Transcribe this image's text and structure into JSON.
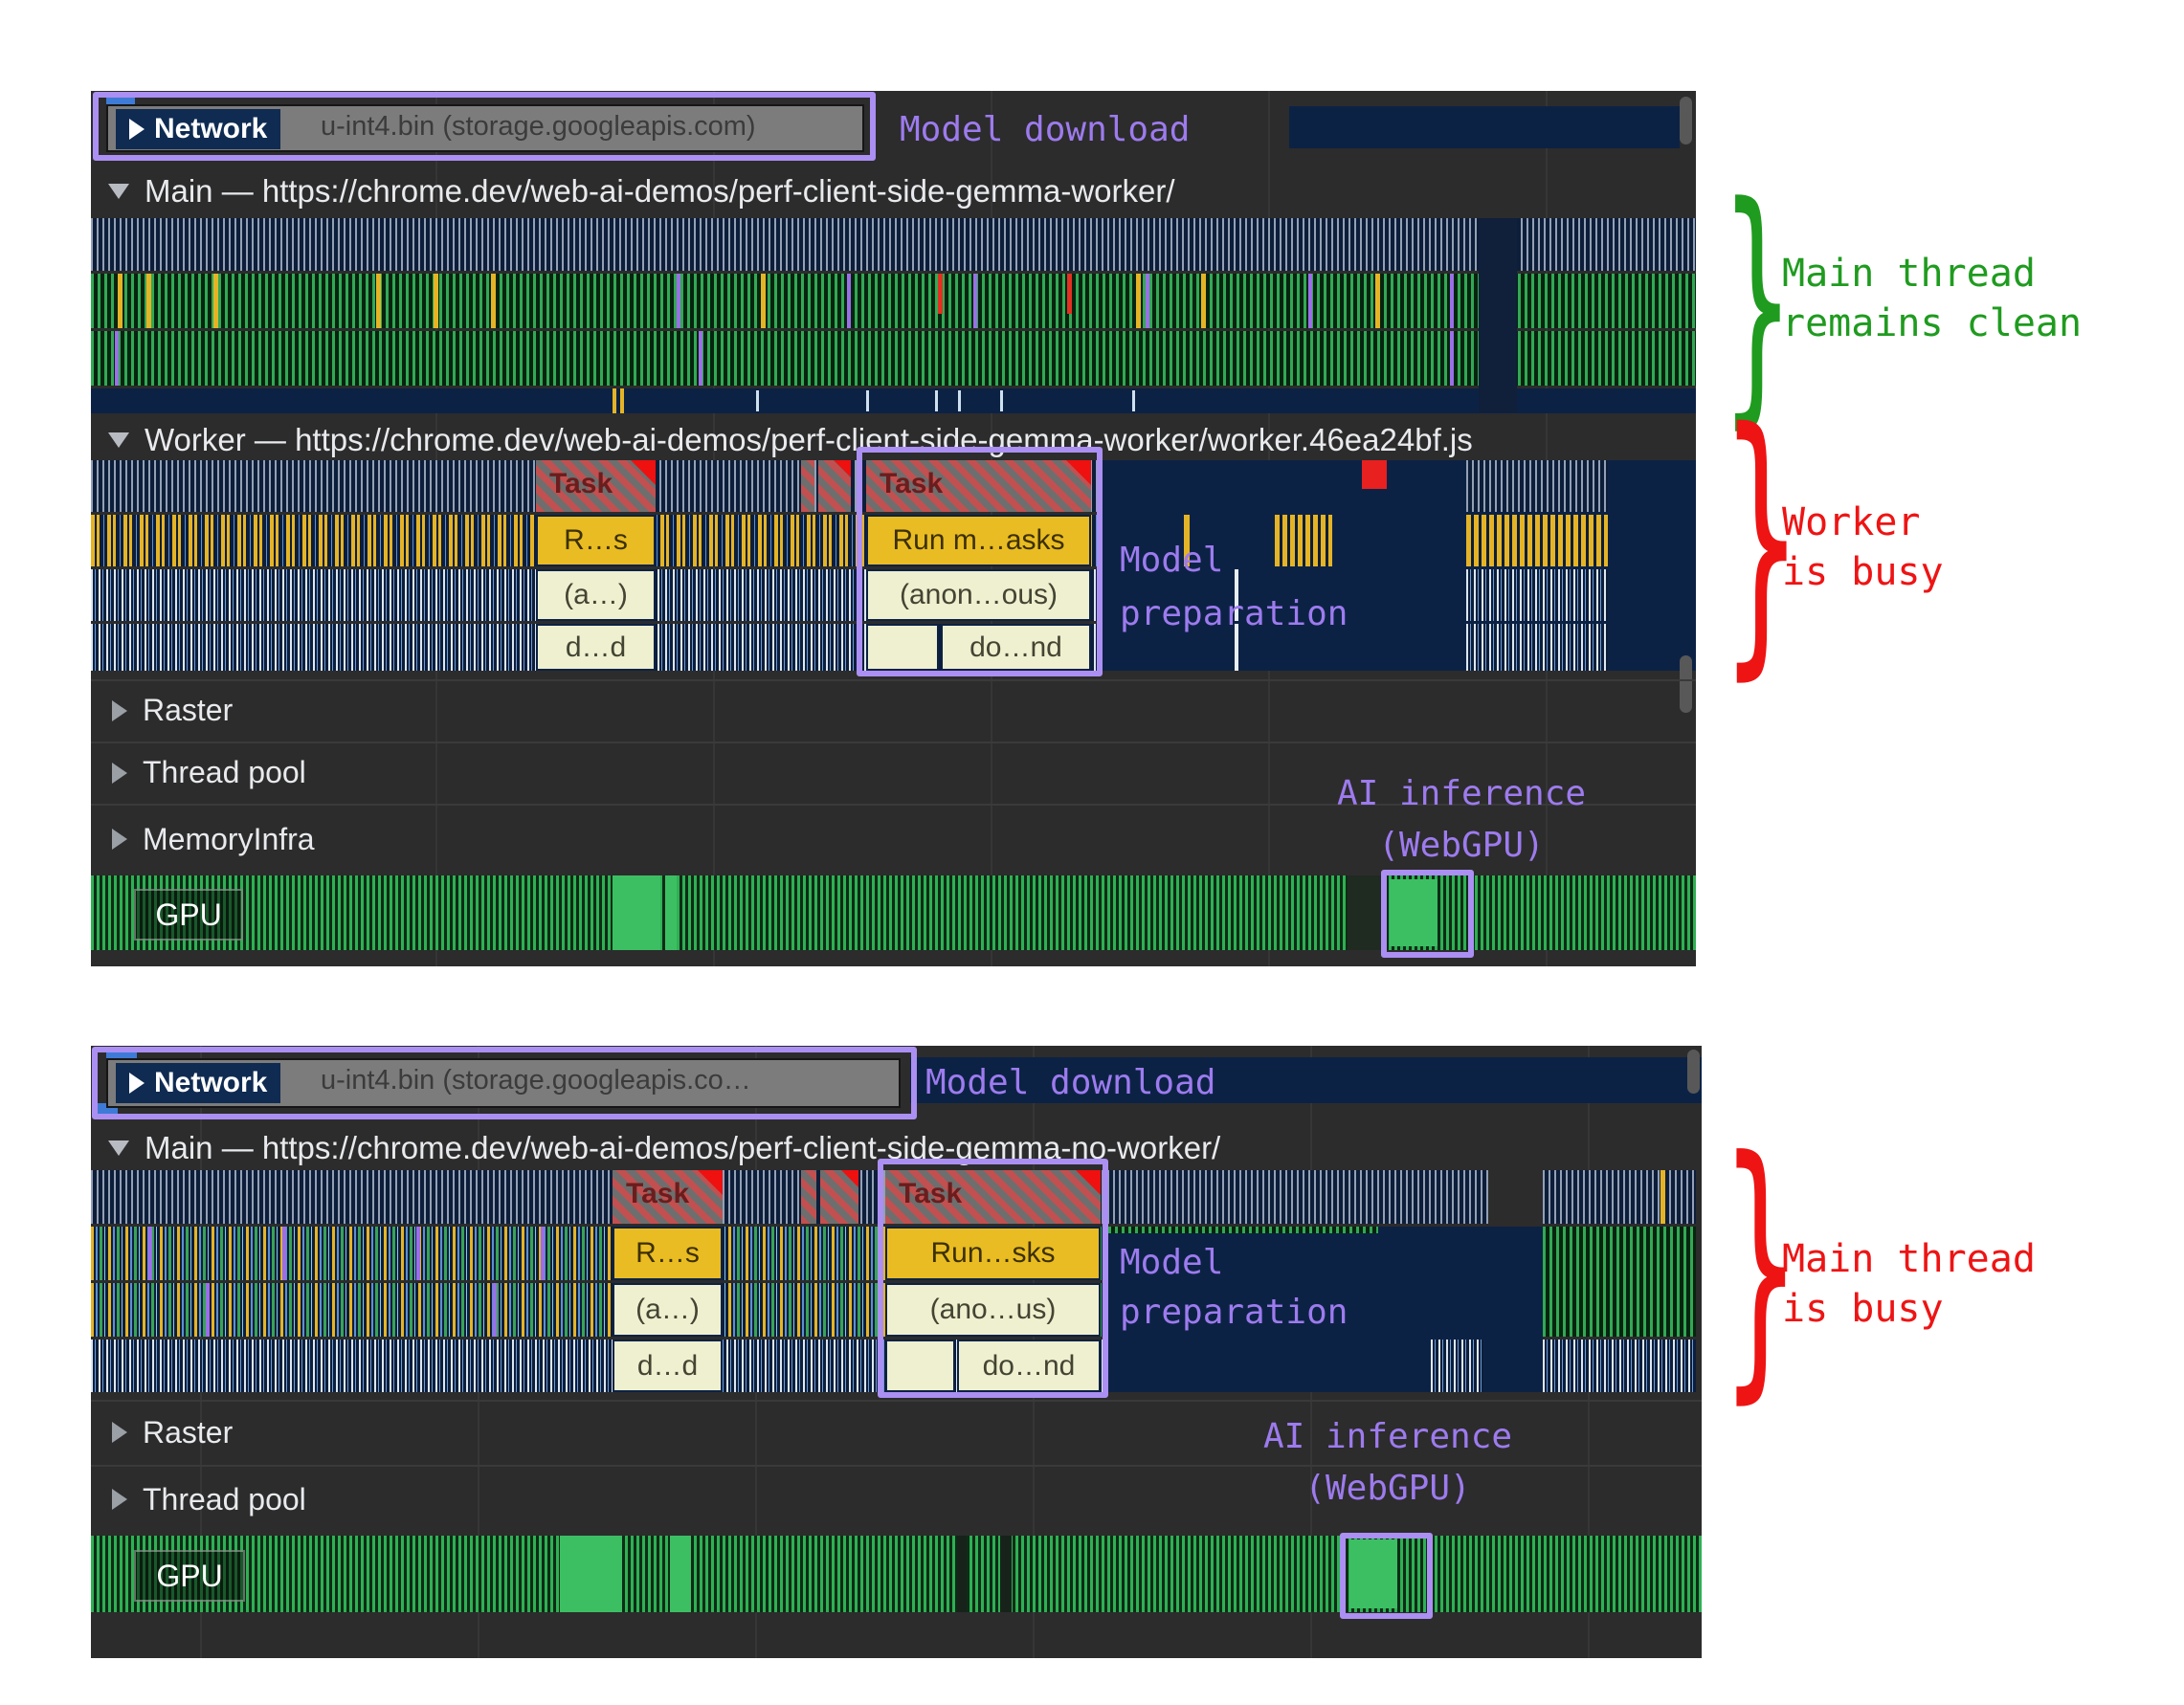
{
  "colors": {
    "annotation_purple": "#9d7bee",
    "annotation_green": "#1f9b1f",
    "annotation_red": "#ee1414",
    "box_purple": "#ab8ff2",
    "flame_navy": "#0c2245",
    "task_yellow": "#e9bc23",
    "gpu_green": "#3cbf63"
  },
  "brace_glyph": "}",
  "top_panel": {
    "network_label": "Network",
    "network_request": "u-int4.bin (storage.googleapis.com)",
    "model_download": "Model download",
    "main_title": "Main — https://chrome.dev/web-ai-demos/perf-client-side-gemma-worker/",
    "worker_title": "Worker — https://chrome.dev/web-ai-demos/perf-client-side-gemma-worker/worker.46ea24bf.js",
    "task1": {
      "title": "Task",
      "level2": "R…s",
      "level3": "(a…)",
      "level4": "d…d"
    },
    "task2": {
      "title": "Task",
      "level2": "Run m…asks",
      "level3": "(anon…ous)",
      "level4": "do…nd"
    },
    "model_preparation": {
      "line1": "Model",
      "line2": "preparation"
    },
    "tracks": {
      "raster": "Raster",
      "thread_pool": "Thread pool",
      "memory_infra": "MemoryInfra",
      "gpu": "GPU"
    },
    "ai_annotation": {
      "line1": "AI inference",
      "line2": "(WebGPU)"
    },
    "main_thread_note": {
      "line1": "Main thread",
      "line2": "remains clean"
    },
    "worker_note": {
      "line1": "Worker",
      "line2": "is busy"
    }
  },
  "bottom_panel": {
    "network_label": "Network",
    "network_request": "u-int4.bin (storage.googleapis.co…",
    "model_download": "Model download",
    "main_title": "Main — https://chrome.dev/web-ai-demos/perf-client-side-gemma-no-worker/",
    "task1": {
      "title": "Task",
      "level2": "R…s",
      "level3": "(a…)",
      "level4": "d…d"
    },
    "task2": {
      "title": "Task",
      "level2": "Run…sks",
      "level3": "(ano…us)",
      "level4": "do…nd"
    },
    "model_preparation": {
      "line1": "Model",
      "line2": "preparation"
    },
    "tracks": {
      "raster": "Raster",
      "thread_pool": "Thread pool",
      "gpu": "GPU"
    },
    "ai_annotation": {
      "line1": "AI inference",
      "line2": "(WebGPU)"
    },
    "main_thread_note": {
      "line1": "Main thread",
      "line2": "is busy"
    }
  }
}
